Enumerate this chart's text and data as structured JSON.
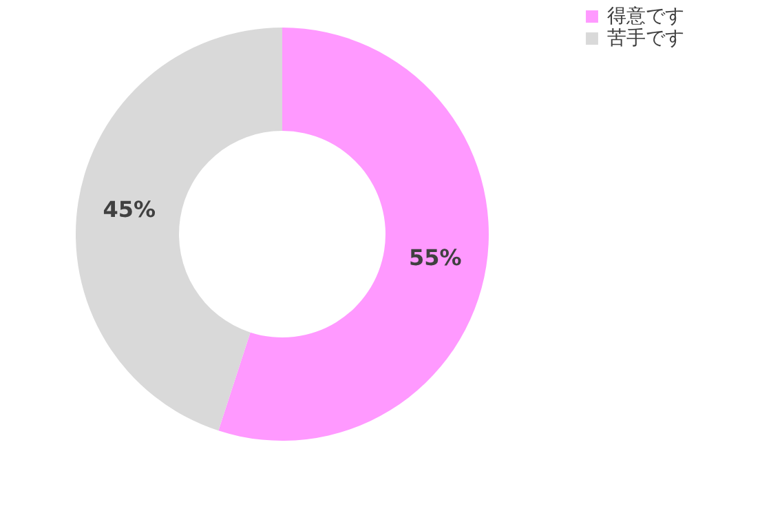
{
  "chart_data": {
    "type": "donut",
    "categories": [
      "得意です",
      "苦手です"
    ],
    "values": [
      55,
      45
    ],
    "colors": [
      "#ff99ff",
      "#d9d9d9"
    ],
    "value_labels": [
      "55%",
      "45%"
    ],
    "legend": "right"
  }
}
